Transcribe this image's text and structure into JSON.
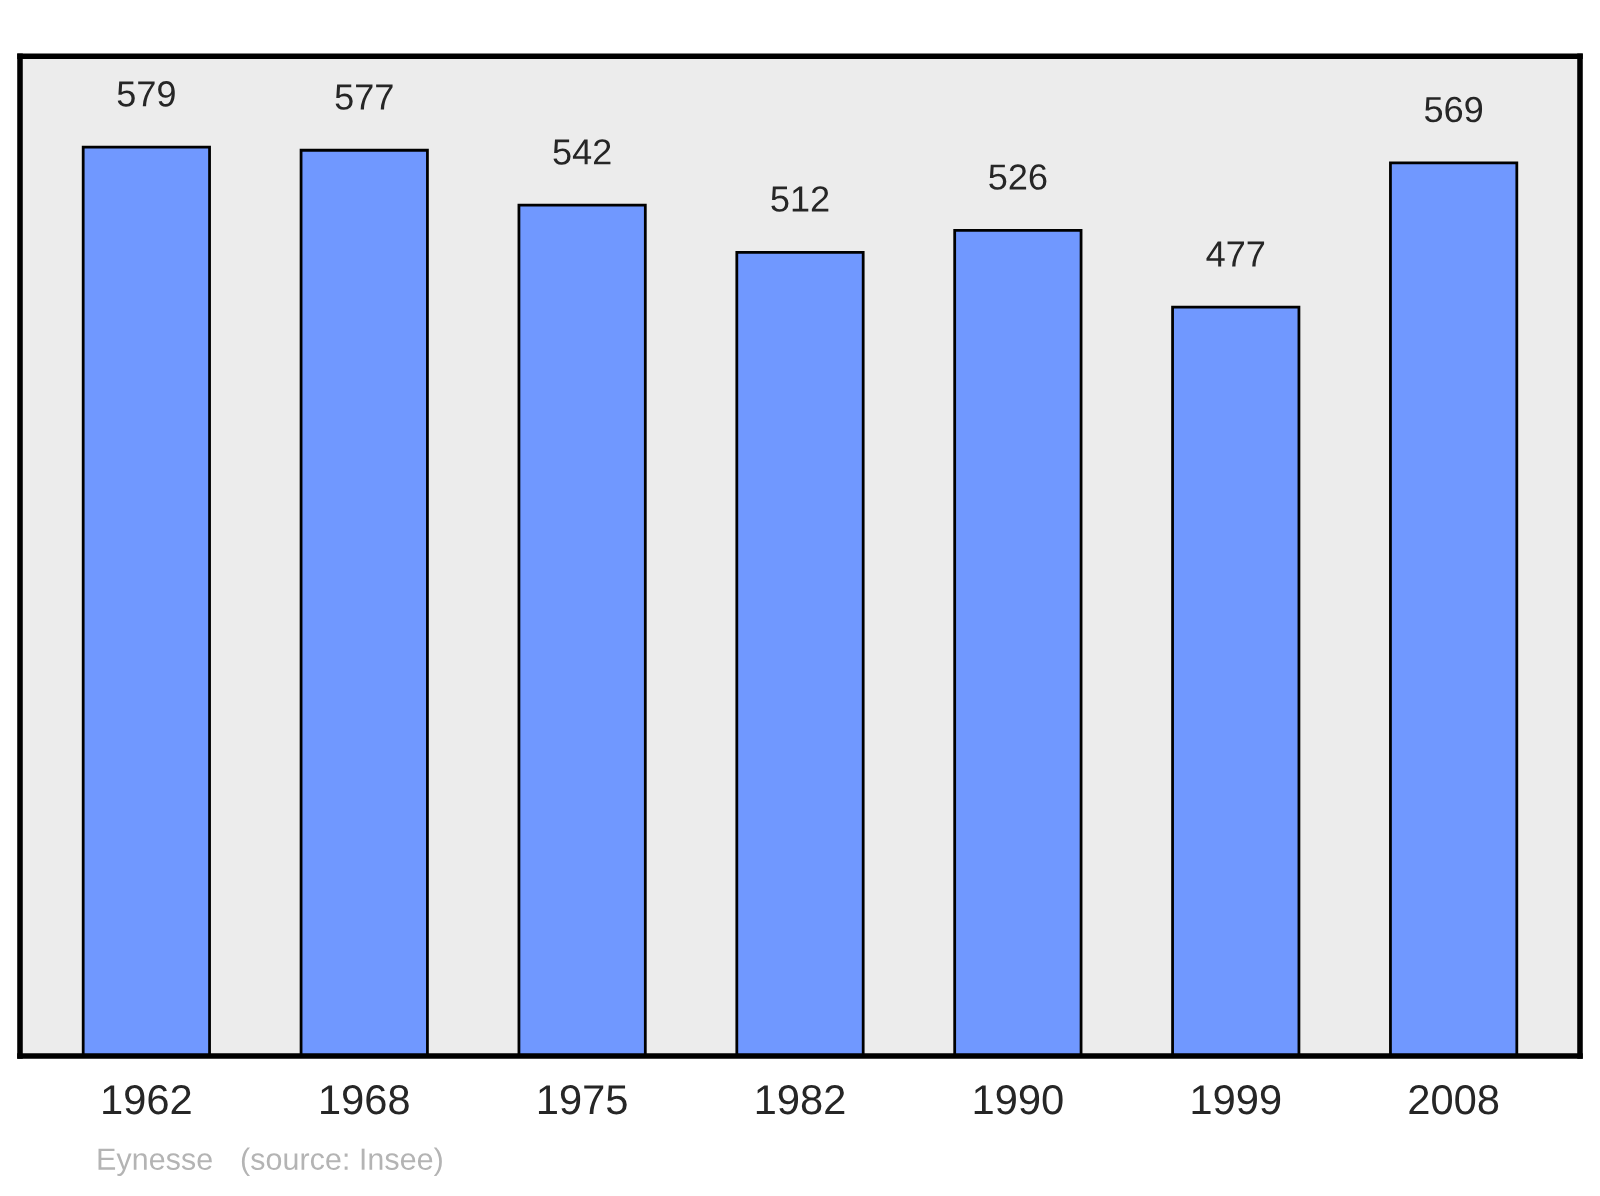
{
  "chart_data": {
    "type": "bar",
    "categories": [
      "1962",
      "1968",
      "1975",
      "1982",
      "1990",
      "1999",
      "2008"
    ],
    "values": [
      579,
      577,
      542,
      512,
      526,
      477,
      569
    ],
    "color": "#7098ff",
    "data_labels": true,
    "annotations": [
      "Eynesse",
      "(source: Insee)"
    ]
  }
}
